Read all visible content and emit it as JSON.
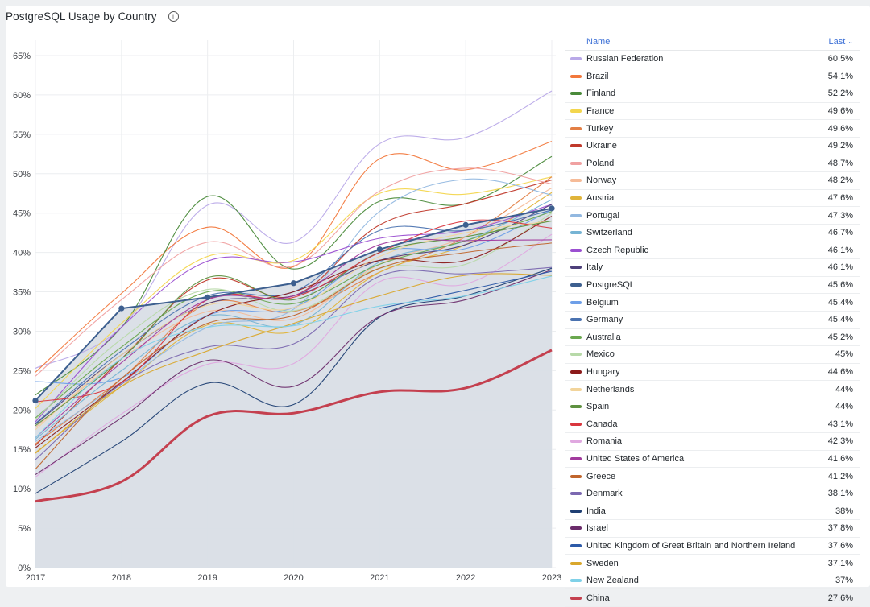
{
  "panel": {
    "title": "PostgreSQL Usage by Country",
    "info_icon": "info-circle-icon"
  },
  "legend": {
    "name_header": "Name",
    "value_header": "Last",
    "sort_icon": "chevron-down-icon"
  },
  "chart_data": {
    "type": "line",
    "title": "PostgreSQL Usage by Country",
    "xlabel": "",
    "ylabel": "",
    "x": [
      "2017",
      "2018",
      "2019",
      "2020",
      "2021",
      "2022",
      "2023"
    ],
    "ylim": [
      0,
      65
    ],
    "yticks": [
      "0%",
      "5%",
      "10%",
      "15%",
      "20%",
      "25%",
      "30%",
      "35%",
      "40%",
      "45%",
      "50%",
      "55%",
      "60%",
      "65%"
    ],
    "grid": true,
    "legend_position": "right",
    "legend_mode": "table",
    "legend_calc": "Last",
    "highlighted_series": "PostgreSQL",
    "series": [
      {
        "name": "Russian Federation",
        "color": "#b9a9e8",
        "last": "60.5%",
        "values": [
          25.3,
          30.5,
          46.0,
          41.3,
          53.8,
          54.6,
          60.5
        ]
      },
      {
        "name": "Brazil",
        "color": "#f2783c",
        "last": "54.1%",
        "values": [
          24.8,
          34.8,
          43.2,
          38.2,
          51.9,
          50.5,
          54.1
        ]
      },
      {
        "name": "Finland",
        "color": "#4a8a3a",
        "last": "52.2%",
        "values": [
          21.9,
          30.5,
          47.1,
          37.9,
          46.5,
          46.2,
          52.2
        ]
      },
      {
        "name": "France",
        "color": "#f3d64e",
        "last": "49.6%",
        "values": [
          20.2,
          31.0,
          39.5,
          39.0,
          47.5,
          47.4,
          49.6
        ]
      },
      {
        "name": "Turkey",
        "color": "#e37f45",
        "last": "49.6%",
        "values": [
          15.7,
          24.0,
          33.5,
          32.5,
          37.5,
          42.0,
          49.6
        ]
      },
      {
        "name": "Ukraine",
        "color": "#c0392b",
        "last": "49.2%",
        "values": [
          15.5,
          26.5,
          36.5,
          34.5,
          43.5,
          46.2,
          49.2
        ]
      },
      {
        "name": "Poland",
        "color": "#f0a1a1",
        "last": "48.7%",
        "values": [
          24.3,
          34.0,
          41.3,
          38.3,
          47.8,
          50.7,
          48.7
        ]
      },
      {
        "name": "Norway",
        "color": "#f6bb98",
        "last": "48.2%",
        "values": [
          17.8,
          26.5,
          32.5,
          31.6,
          38.5,
          42.0,
          48.2
        ]
      },
      {
        "name": "Austria",
        "color": "#e0b43a",
        "last": "47.6%",
        "values": [
          14.6,
          23.0,
          30.8,
          30.0,
          37.5,
          41.0,
          47.6
        ]
      },
      {
        "name": "Portugal",
        "color": "#92b8e0",
        "last": "47.3%",
        "values": [
          16.0,
          23.5,
          30.5,
          32.8,
          45.2,
          49.3,
          47.3
        ]
      },
      {
        "name": "Switzerland",
        "color": "#76b4d4",
        "last": "46.7%",
        "values": [
          16.3,
          25.0,
          31.9,
          30.8,
          38.8,
          41.5,
          46.7
        ]
      },
      {
        "name": "Czech Republic",
        "color": "#9b4fd1",
        "last": "46.1%",
        "values": [
          18.5,
          30.5,
          38.9,
          38.8,
          41.8,
          42.8,
          46.1
        ]
      },
      {
        "name": "Italy",
        "color": "#4d3f7a",
        "last": "46.1%",
        "values": [
          18.2,
          27.0,
          33.5,
          34.5,
          39.0,
          41.0,
          46.1
        ]
      },
      {
        "name": "PostgreSQL",
        "color": "#3d5f8f",
        "last": "45.6%",
        "values": [
          21.2,
          32.9,
          34.3,
          36.1,
          40.4,
          43.5,
          45.6
        ]
      },
      {
        "name": "Belgium",
        "color": "#6e9fe8",
        "last": "45.4%",
        "values": [
          23.6,
          24.1,
          32.0,
          33.0,
          40.0,
          40.5,
          45.4
        ]
      },
      {
        "name": "Germany",
        "color": "#4a72b0",
        "last": "45.4%",
        "values": [
          18.3,
          27.5,
          34.5,
          35.0,
          42.8,
          42.8,
          45.4
        ]
      },
      {
        "name": "Australia",
        "color": "#6aa84f",
        "last": "45.2%",
        "values": [
          19.0,
          28.0,
          35.0,
          33.5,
          38.5,
          41.5,
          45.2
        ]
      },
      {
        "name": "Mexico",
        "color": "#b7d9a8",
        "last": "45%",
        "values": [
          18.8,
          29.0,
          35.3,
          32.6,
          38.0,
          38.5,
          45.0
        ]
      },
      {
        "name": "Hungary",
        "color": "#8b1a1a",
        "last": "44.6%",
        "values": [
          15.2,
          23.5,
          32.0,
          35.0,
          39.0,
          39.0,
          44.6
        ]
      },
      {
        "name": "Netherlands",
        "color": "#f2d49b",
        "last": "44%",
        "values": [
          17.5,
          27.0,
          33.3,
          33.0,
          39.5,
          42.5,
          44.0
        ]
      },
      {
        "name": "Spain",
        "color": "#5e9140",
        "last": "44%",
        "values": [
          18.0,
          26.5,
          36.8,
          34.0,
          40.0,
          42.0,
          44.0
        ]
      },
      {
        "name": "Canada",
        "color": "#d9363e",
        "last": "43.1%",
        "values": [
          21.0,
          23.5,
          34.0,
          34.3,
          40.0,
          44.0,
          43.1
        ]
      },
      {
        "name": "Romania",
        "color": "#e0a8e0",
        "last": "42.3%",
        "values": [
          11.5,
          19.5,
          25.8,
          25.9,
          36.3,
          36.0,
          42.3
        ]
      },
      {
        "name": "United States of America",
        "color": "#a23b9e",
        "last": "41.6%",
        "values": [
          16.5,
          26.0,
          34.0,
          34.5,
          41.0,
          41.5,
          41.6
        ]
      },
      {
        "name": "Greece",
        "color": "#c0652c",
        "last": "41.2%",
        "values": [
          12.5,
          24.0,
          31.0,
          32.0,
          38.0,
          40.0,
          41.2
        ]
      },
      {
        "name": "Denmark",
        "color": "#7b68b0",
        "last": "38.1%",
        "values": [
          13.7,
          23.3,
          28.0,
          28.4,
          37.0,
          37.3,
          38.1
        ]
      },
      {
        "name": "India",
        "color": "#1f3f73",
        "last": "38%",
        "values": [
          9.4,
          16.0,
          23.4,
          20.7,
          31.8,
          34.5,
          38.0
        ]
      },
      {
        "name": "Israel",
        "color": "#6b2c6b",
        "last": "37.8%",
        "values": [
          11.8,
          19.0,
          26.3,
          23.0,
          31.9,
          34.0,
          37.8
        ]
      },
      {
        "name": "United Kingdom of Great Britain and Northern Ireland",
        "color": "#2d5aa8",
        "last": "37.6%",
        "values": [
          null,
          null,
          null,
          null,
          32.9,
          35.2,
          37.6
        ]
      },
      {
        "name": "Sweden",
        "color": "#d9a72c",
        "last": "37.1%",
        "values": [
          14.5,
          23.0,
          27.5,
          31.0,
          34.5,
          37.1,
          37.1
        ]
      },
      {
        "name": "New Zealand",
        "color": "#7fd1e8",
        "last": "37%",
        "values": [
          16.5,
          26.5,
          30.5,
          30.7,
          33.2,
          34.5,
          37.0
        ]
      },
      {
        "name": "China",
        "color": "#c4404f",
        "last": "27.6%",
        "values": [
          8.4,
          10.9,
          19.2,
          19.6,
          22.3,
          22.8,
          27.6
        ]
      }
    ]
  }
}
